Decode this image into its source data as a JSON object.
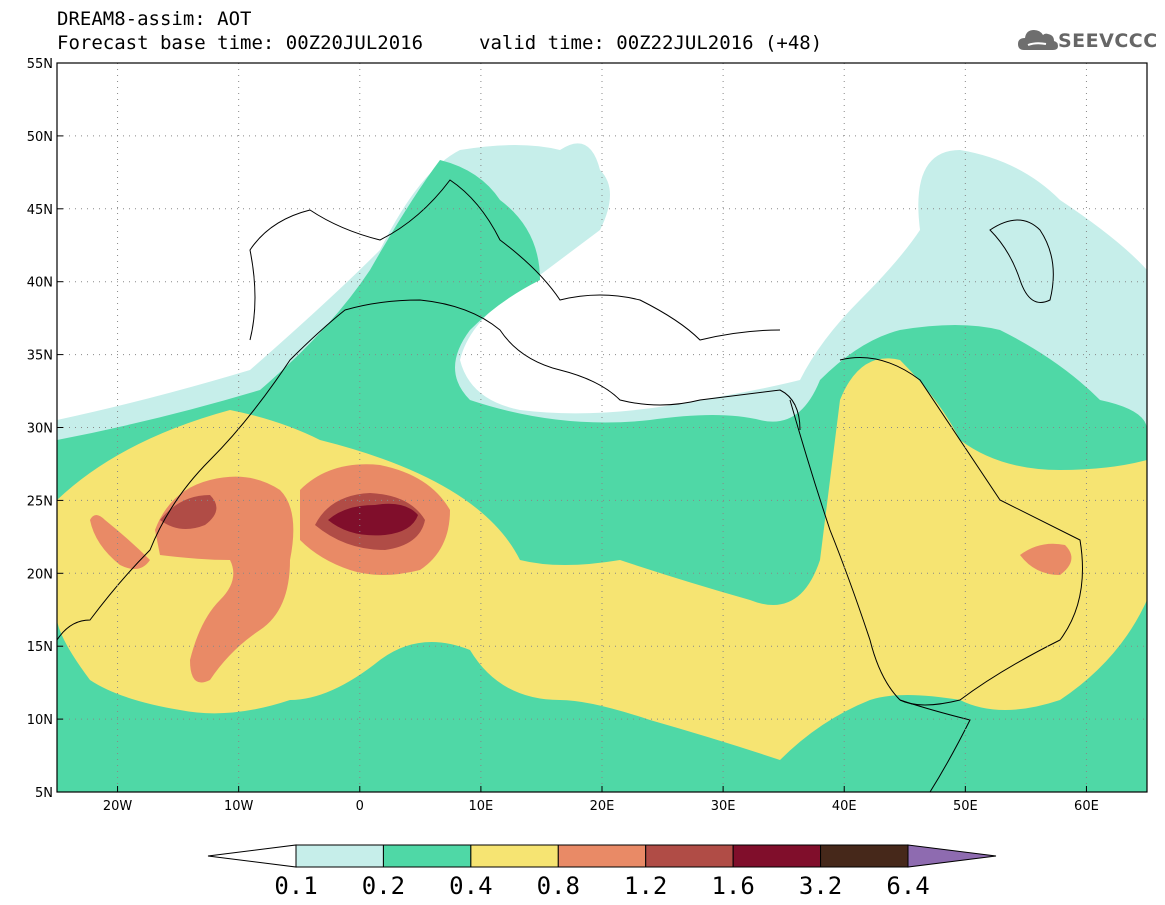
{
  "header": {
    "title": "DREAM8-assim: AOT",
    "base_time": "Forecast base time: 00Z20JUL2016",
    "valid_time": "valid time: 00Z22JUL2016 (+48)"
  },
  "logo": {
    "text": "SEEVCCC",
    "icon": "cloud-icon",
    "color": "#666666"
  },
  "map": {
    "lon_range": [
      -25,
      65
    ],
    "lat_range": [
      5,
      55
    ],
    "lat_ticks": [
      {
        "v": 55,
        "label": "55N"
      },
      {
        "v": 50,
        "label": "50N"
      },
      {
        "v": 45,
        "label": "45N"
      },
      {
        "v": 40,
        "label": "40N"
      },
      {
        "v": 35,
        "label": "35N"
      },
      {
        "v": 30,
        "label": "30N"
      },
      {
        "v": 25,
        "label": "25N"
      },
      {
        "v": 20,
        "label": "20N"
      },
      {
        "v": 15,
        "label": "15N"
      },
      {
        "v": 10,
        "label": "10N"
      },
      {
        "v": 5,
        "label": "5N"
      }
    ],
    "lon_ticks": [
      {
        "v": -20,
        "label": "20W"
      },
      {
        "v": -10,
        "label": "10W"
      },
      {
        "v": 0,
        "label": "0"
      },
      {
        "v": 10,
        "label": "10E"
      },
      {
        "v": 20,
        "label": "20E"
      },
      {
        "v": 30,
        "label": "30E"
      },
      {
        "v": 40,
        "label": "40E"
      },
      {
        "v": 50,
        "label": "50E"
      },
      {
        "v": 60,
        "label": "60E"
      }
    ],
    "grid": "dotted"
  },
  "colorbar": {
    "labels": [
      "0.1",
      "0.2",
      "0.4",
      "0.8",
      "1.2",
      "1.6",
      "3.2",
      "6.4"
    ],
    "colors": [
      "#ffffff",
      "#c6eeea",
      "#4fd8a6",
      "#f6e472",
      "#e98a66",
      "#b04c46",
      "#800e2b",
      "#46281a",
      "#8e6bb0"
    ]
  }
}
